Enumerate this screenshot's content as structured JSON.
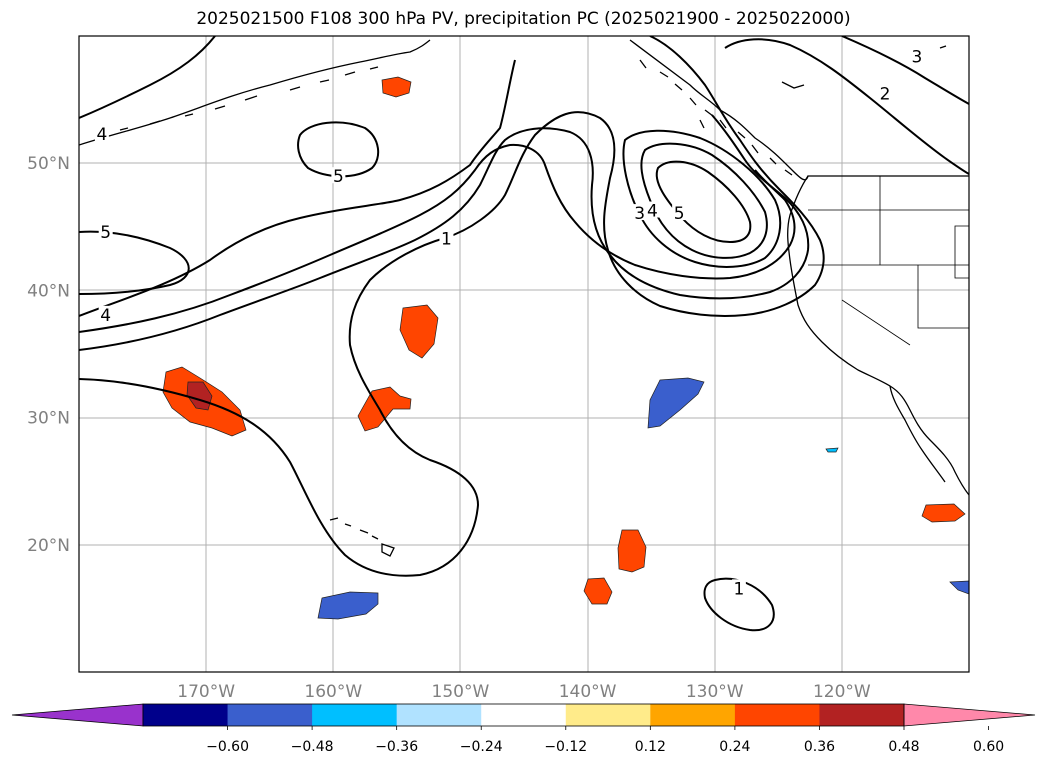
{
  "title": "2025021500 F108 300 hPa PV, precipitation PC (2025021900 - 2025022000)",
  "lat_labels": [
    {
      "text": "50°N",
      "lat": 50
    },
    {
      "text": "40°N",
      "lat": 40
    },
    {
      "text": "30°N",
      "lat": 30
    },
    {
      "text": "20°N",
      "lat": 20
    }
  ],
  "lon_labels": [
    {
      "text": "170°W",
      "lon": -170
    },
    {
      "text": "160°W",
      "lon": -160
    },
    {
      "text": "150°W",
      "lon": -150
    },
    {
      "text": "140°W",
      "lon": -140
    },
    {
      "text": "130°W",
      "lon": -130
    },
    {
      "text": "120°W",
      "lon": -120
    }
  ],
  "pv_contour_labels": [
    {
      "text": "4",
      "lon": -178.2,
      "lat": 52.2
    },
    {
      "text": "5",
      "lon": -177.9,
      "lat": 44.5
    },
    {
      "text": "4",
      "lon": -177.9,
      "lat": 38.0
    },
    {
      "text": "5",
      "lon": -159.6,
      "lat": 48.9
    },
    {
      "text": "1",
      "lon": -151.1,
      "lat": 44.0
    },
    {
      "text": "3",
      "lon": -135.9,
      "lat": 46.0
    },
    {
      "text": "4",
      "lon": -134.9,
      "lat": 46.2
    },
    {
      "text": "5",
      "lon": -132.8,
      "lat": 46.0
    },
    {
      "text": "2",
      "lon": -116.6,
      "lat": 55.4
    },
    {
      "text": "3",
      "lon": -114.1,
      "lat": 58.3
    },
    {
      "text": "1",
      "lon": -128.1,
      "lat": 16.5
    }
  ],
  "colorbar": {
    "colors": [
      "#9932cc",
      "#00008b",
      "#3a5fcd",
      "#00bfff",
      "#b0e2ff",
      "#ffffff",
      "#ffeb8a",
      "#ffa500",
      "#ff4500",
      "#b22222",
      "#ff88aa"
    ],
    "tick_labels": [
      "−0.60",
      "−0.48",
      "−0.36",
      "−0.24",
      "−0.12",
      "0.12",
      "0.24",
      "0.36",
      "0.48",
      "0.60"
    ]
  }
}
